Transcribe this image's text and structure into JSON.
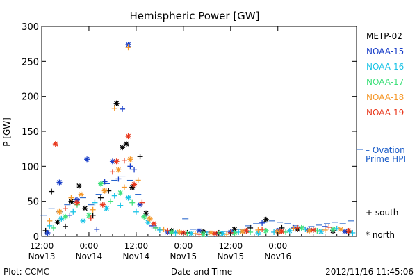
{
  "chart_data": {
    "type": "scatter",
    "title": "Hemispheric Power [GW]",
    "ylabel": "P [GW]",
    "xlabel": "Date and Time",
    "ylim": [
      0,
      300
    ],
    "yticks": [
      0,
      50,
      100,
      150,
      200,
      250,
      300
    ],
    "xlim_hours": [
      0,
      80
    ],
    "xticks": [
      {
        "h": 0,
        "time": "12:00",
        "date": "Nov13"
      },
      {
        "h": 12,
        "time": "0:00",
        "date": "Nov14"
      },
      {
        "h": 24,
        "time": "12:00",
        "date": "Nov14"
      },
      {
        "h": 36,
        "time": "0:00",
        "date": "Nov15"
      },
      {
        "h": 48,
        "time": "12:00",
        "date": "Nov15"
      },
      {
        "h": 60,
        "time": "0:00",
        "date": "Nov16"
      }
    ],
    "footer_left": "Plot: CCMC",
    "footer_right": "2012/11/16 11:45:06",
    "legend": {
      "items": [
        {
          "name": "METP-02",
          "color": "#000000"
        },
        {
          "name": "NOAA-15",
          "color": "#1a3fc8"
        },
        {
          "name": "NOAA-16",
          "color": "#19c3e6"
        },
        {
          "name": "NOAA-17",
          "color": "#3ee07a"
        },
        {
          "name": "NOAA-18",
          "color": "#f5982a"
        },
        {
          "name": "NOAA-19",
          "color": "#e8371c"
        }
      ],
      "ovation_symbol": "– Ovation",
      "ovation_line1": "– Ovation",
      "ovation_line2": "Prime HPI",
      "ovation_color": "#1a5cc8",
      "south_label": "+ south",
      "north_label": "* north"
    },
    "series": [
      {
        "name": "METP-02",
        "color": "#000000",
        "points": [
          {
            "t": 1,
            "v": 8,
            "m": "+"
          },
          {
            "t": 2.5,
            "v": 64,
            "m": "+"
          },
          {
            "t": 4,
            "v": 20,
            "m": "*"
          },
          {
            "t": 6,
            "v": 14,
            "m": "+"
          },
          {
            "t": 7.5,
            "v": 50,
            "m": "*"
          },
          {
            "t": 9.5,
            "v": 72,
            "m": "*"
          },
          {
            "t": 11,
            "v": 40,
            "m": "*"
          },
          {
            "t": 13,
            "v": 30,
            "m": "+"
          },
          {
            "t": 15,
            "v": 55,
            "m": "+"
          },
          {
            "t": 17,
            "v": 65,
            "m": "+"
          },
          {
            "t": 19,
            "v": 190,
            "m": "*"
          },
          {
            "t": 20.5,
            "v": 127,
            "m": "*"
          },
          {
            "t": 21.5,
            "v": 132,
            "m": "*"
          },
          {
            "t": 23,
            "v": 70,
            "m": "*"
          },
          {
            "t": 25,
            "v": 114,
            "m": "+"
          },
          {
            "t": 26.5,
            "v": 33,
            "m": "*"
          },
          {
            "t": 29,
            "v": 12,
            "m": "+"
          },
          {
            "t": 33,
            "v": 8,
            "m": "*"
          },
          {
            "t": 37,
            "v": 5,
            "m": "+"
          },
          {
            "t": 41,
            "v": 6,
            "m": "*"
          },
          {
            "t": 45,
            "v": 5,
            "m": "+"
          },
          {
            "t": 49,
            "v": 10,
            "m": "*"
          },
          {
            "t": 53,
            "v": 12,
            "m": "+"
          },
          {
            "t": 57,
            "v": 24,
            "m": "*"
          },
          {
            "t": 61,
            "v": 12,
            "m": "+"
          },
          {
            "t": 65,
            "v": 10,
            "m": "*"
          },
          {
            "t": 69,
            "v": 9,
            "m": "+"
          },
          {
            "t": 74,
            "v": 8,
            "m": "*"
          },
          {
            "t": 78,
            "v": 6,
            "m": "+"
          }
        ]
      },
      {
        "name": "NOAA-15",
        "color": "#1a3fc8",
        "points": [
          {
            "t": 1.5,
            "v": 5,
            "m": "*"
          },
          {
            "t": 4.5,
            "v": 77,
            "m": "*"
          },
          {
            "t": 7,
            "v": 30,
            "m": "+"
          },
          {
            "t": 9,
            "v": 52,
            "m": "*"
          },
          {
            "t": 11.5,
            "v": 110,
            "m": "*"
          },
          {
            "t": 14,
            "v": 10,
            "m": "+"
          },
          {
            "t": 16,
            "v": 78,
            "m": "+"
          },
          {
            "t": 18,
            "v": 107,
            "m": "*"
          },
          {
            "t": 19.5,
            "v": 82,
            "m": "+"
          },
          {
            "t": 20.5,
            "v": 182,
            "m": "+"
          },
          {
            "t": 22,
            "v": 274,
            "m": "*"
          },
          {
            "t": 22.5,
            "v": 100,
            "m": "+"
          },
          {
            "t": 23.5,
            "v": 95,
            "m": "+"
          },
          {
            "t": 25,
            "v": 45,
            "m": "*"
          },
          {
            "t": 28,
            "v": 15,
            "m": "+"
          },
          {
            "t": 32,
            "v": 6,
            "m": "*"
          },
          {
            "t": 36,
            "v": 4,
            "m": "+"
          },
          {
            "t": 40,
            "v": 8,
            "m": "*"
          },
          {
            "t": 44,
            "v": 3,
            "m": "+"
          },
          {
            "t": 48,
            "v": 6,
            "m": "*"
          },
          {
            "t": 52,
            "v": 7,
            "m": "+"
          },
          {
            "t": 56,
            "v": 19,
            "m": "+"
          },
          {
            "t": 60,
            "v": 8,
            "m": "*"
          },
          {
            "t": 64,
            "v": 12,
            "m": "+"
          },
          {
            "t": 68,
            "v": 9,
            "m": "*"
          },
          {
            "t": 72,
            "v": 14,
            "m": "+"
          },
          {
            "t": 77,
            "v": 7,
            "m": "*"
          }
        ]
      },
      {
        "name": "NOAA-16",
        "color": "#19c3e6",
        "points": [
          {
            "t": 2,
            "v": 15,
            "m": "+"
          },
          {
            "t": 5,
            "v": 25,
            "m": "*"
          },
          {
            "t": 8,
            "v": 35,
            "m": "+"
          },
          {
            "t": 10.5,
            "v": 22,
            "m": "*"
          },
          {
            "t": 13.5,
            "v": 48,
            "m": "+"
          },
          {
            "t": 16.5,
            "v": 40,
            "m": "*"
          },
          {
            "t": 18.5,
            "v": 58,
            "m": "+"
          },
          {
            "t": 20,
            "v": 44,
            "m": "+"
          },
          {
            "t": 22,
            "v": 55,
            "m": "*"
          },
          {
            "t": 24,
            "v": 35,
            "m": "+"
          },
          {
            "t": 27,
            "v": 20,
            "m": "*"
          },
          {
            "t": 30,
            "v": 9,
            "m": "+"
          },
          {
            "t": 34,
            "v": 5,
            "m": "+"
          },
          {
            "t": 38,
            "v": 4,
            "m": "*"
          },
          {
            "t": 42,
            "v": 3,
            "m": "+"
          },
          {
            "t": 46,
            "v": 4,
            "m": "*"
          },
          {
            "t": 50,
            "v": 6,
            "m": "+"
          },
          {
            "t": 55,
            "v": 5,
            "m": "*"
          },
          {
            "t": 59,
            "v": 6,
            "m": "+"
          },
          {
            "t": 63,
            "v": 8,
            "m": "*"
          },
          {
            "t": 67,
            "v": 10,
            "m": "+"
          },
          {
            "t": 71,
            "v": 7,
            "m": "*"
          },
          {
            "t": 75,
            "v": 11,
            "m": "+"
          },
          {
            "t": 79,
            "v": 5,
            "m": "+"
          }
        ]
      },
      {
        "name": "NOAA-17",
        "color": "#3ee07a",
        "points": [
          {
            "t": 3,
            "v": 12,
            "m": "+"
          },
          {
            "t": 6,
            "v": 28,
            "m": "*"
          },
          {
            "t": 9,
            "v": 45,
            "m": "+"
          },
          {
            "t": 12,
            "v": 30,
            "m": "*"
          },
          {
            "t": 15,
            "v": 75,
            "m": "*"
          },
          {
            "t": 17.5,
            "v": 50,
            "m": "+"
          },
          {
            "t": 20,
            "v": 62,
            "m": "*"
          },
          {
            "t": 23,
            "v": 48,
            "m": "+"
          },
          {
            "t": 26,
            "v": 28,
            "m": "*"
          },
          {
            "t": 29,
            "v": 12,
            "m": "+"
          },
          {
            "t": 33,
            "v": 6,
            "m": "*"
          },
          {
            "t": 37,
            "v": 4,
            "m": "+"
          },
          {
            "t": 41,
            "v": 3,
            "m": "*"
          },
          {
            "t": 45,
            "v": 4,
            "m": "+"
          },
          {
            "t": 49,
            "v": 5,
            "m": "*"
          },
          {
            "t": 53,
            "v": 6,
            "m": "+"
          },
          {
            "t": 57,
            "v": 8,
            "m": "*"
          },
          {
            "t": 62,
            "v": 6,
            "m": "+"
          },
          {
            "t": 66,
            "v": 12,
            "m": "*"
          },
          {
            "t": 70,
            "v": 8,
            "m": "+"
          },
          {
            "t": 74,
            "v": 10,
            "m": "*"
          }
        ]
      },
      {
        "name": "NOAA-18",
        "color": "#f5982a",
        "points": [
          {
            "t": 2,
            "v": 22,
            "m": "+"
          },
          {
            "t": 4.5,
            "v": 35,
            "m": "*"
          },
          {
            "t": 7.5,
            "v": 55,
            "m": "+"
          },
          {
            "t": 10,
            "v": 60,
            "m": "*"
          },
          {
            "t": 13,
            "v": 38,
            "m": "+"
          },
          {
            "t": 16,
            "v": 65,
            "m": "*"
          },
          {
            "t": 18.5,
            "v": 183,
            "m": "+"
          },
          {
            "t": 19.5,
            "v": 95,
            "m": "*"
          },
          {
            "t": 21,
            "v": 70,
            "m": "+"
          },
          {
            "t": 22,
            "v": 270,
            "m": "+"
          },
          {
            "t": 22.5,
            "v": 110,
            "m": "*"
          },
          {
            "t": 24.5,
            "v": 80,
            "m": "+"
          },
          {
            "t": 27.5,
            "v": 25,
            "m": "*"
          },
          {
            "t": 31,
            "v": 10,
            "m": "+"
          },
          {
            "t": 35,
            "v": 6,
            "m": "*"
          },
          {
            "t": 39,
            "v": 4,
            "m": "+"
          },
          {
            "t": 43,
            "v": 5,
            "m": "*"
          },
          {
            "t": 47,
            "v": 3,
            "m": "+"
          },
          {
            "t": 51,
            "v": 7,
            "m": "*"
          },
          {
            "t": 55,
            "v": 9,
            "m": "+"
          },
          {
            "t": 60,
            "v": 6,
            "m": "*"
          },
          {
            "t": 64,
            "v": 11,
            "m": "+"
          },
          {
            "t": 68,
            "v": 8,
            "m": "*"
          },
          {
            "t": 72,
            "v": 9,
            "m": "+"
          },
          {
            "t": 76,
            "v": 10,
            "m": "*"
          }
        ]
      },
      {
        "name": "NOAA-19",
        "color": "#e8371c",
        "points": [
          {
            "t": 3.5,
            "v": 132,
            "m": "*"
          },
          {
            "t": 6,
            "v": 40,
            "m": "+"
          },
          {
            "t": 9,
            "v": 48,
            "m": "*"
          },
          {
            "t": 12.5,
            "v": 26,
            "m": "+"
          },
          {
            "t": 15.5,
            "v": 45,
            "m": "*"
          },
          {
            "t": 18,
            "v": 92,
            "m": "+"
          },
          {
            "t": 19,
            "v": 107,
            "m": "*"
          },
          {
            "t": 21,
            "v": 108,
            "m": "+"
          },
          {
            "t": 22,
            "v": 143,
            "m": "*"
          },
          {
            "t": 23.5,
            "v": 74,
            "m": "*"
          },
          {
            "t": 25.5,
            "v": 48,
            "m": "+"
          },
          {
            "t": 28.5,
            "v": 18,
            "m": "*"
          },
          {
            "t": 32,
            "v": 8,
            "m": "+"
          },
          {
            "t": 36,
            "v": 5,
            "m": "*"
          },
          {
            "t": 40,
            "v": 3,
            "m": "+"
          },
          {
            "t": 44,
            "v": 4,
            "m": "*"
          },
          {
            "t": 48,
            "v": 5,
            "m": "+"
          },
          {
            "t": 52,
            "v": 8,
            "m": "*"
          },
          {
            "t": 56,
            "v": 10,
            "m": "+"
          },
          {
            "t": 61,
            "v": 7,
            "m": "*"
          },
          {
            "t": 65,
            "v": 12,
            "m": "+"
          },
          {
            "t": 69,
            "v": 9,
            "m": "*"
          },
          {
            "t": 73,
            "v": 13,
            "m": "+"
          },
          {
            "t": 78,
            "v": 8,
            "m": "*"
          }
        ]
      }
    ],
    "ovation": {
      "name": "Ovation Prime HPI",
      "color": "#1a5cc8",
      "points": [
        {
          "t": 0.5,
          "v": 30
        },
        {
          "t": 2.5,
          "v": 40
        },
        {
          "t": 4.5,
          "v": 35
        },
        {
          "t": 6.5,
          "v": 45
        },
        {
          "t": 8.5,
          "v": 50
        },
        {
          "t": 10.5,
          "v": 55
        },
        {
          "t": 12.5,
          "v": 45
        },
        {
          "t": 14.5,
          "v": 60
        },
        {
          "t": 16.5,
          "v": 75
        },
        {
          "t": 18.5,
          "v": 80
        },
        {
          "t": 20.5,
          "v": 85
        },
        {
          "t": 22.5,
          "v": 80
        },
        {
          "t": 24.5,
          "v": 60
        },
        {
          "t": 26.5,
          "v": 30
        },
        {
          "t": 28.5,
          "v": 15
        },
        {
          "t": 30.5,
          "v": 10
        },
        {
          "t": 32.5,
          "v": 8
        },
        {
          "t": 34.5,
          "v": 6
        },
        {
          "t": 36.5,
          "v": 25
        },
        {
          "t": 38.5,
          "v": 10
        },
        {
          "t": 40.5,
          "v": 8
        },
        {
          "t": 42.5,
          "v": 6
        },
        {
          "t": 44.5,
          "v": 5
        },
        {
          "t": 46.5,
          "v": 7
        },
        {
          "t": 48.5,
          "v": 8
        },
        {
          "t": 50.5,
          "v": 10
        },
        {
          "t": 52.5,
          "v": 15
        },
        {
          "t": 54.5,
          "v": 18
        },
        {
          "t": 56.5,
          "v": 20
        },
        {
          "t": 58.5,
          "v": 22
        },
        {
          "t": 60.5,
          "v": 20
        },
        {
          "t": 62.5,
          "v": 18
        },
        {
          "t": 64.5,
          "v": 15
        },
        {
          "t": 66.5,
          "v": 12
        },
        {
          "t": 68.5,
          "v": 14
        },
        {
          "t": 70.5,
          "v": 16
        },
        {
          "t": 72.5,
          "v": 18
        },
        {
          "t": 74.5,
          "v": 20
        },
        {
          "t": 76.5,
          "v": 18
        },
        {
          "t": 78.5,
          "v": 22
        }
      ]
    }
  }
}
